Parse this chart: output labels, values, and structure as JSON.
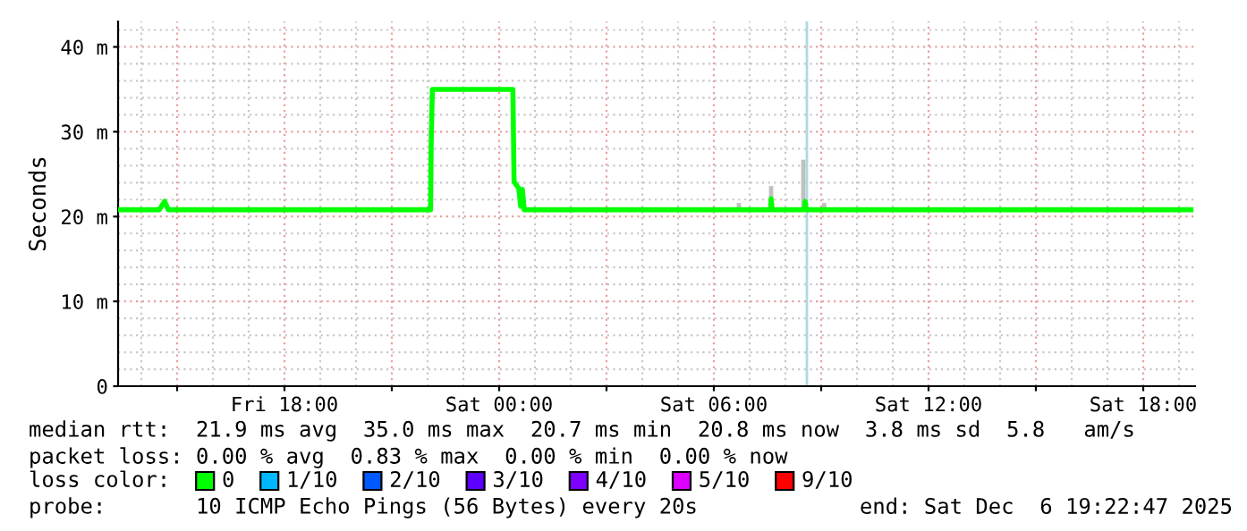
{
  "chart_data": {
    "type": "line",
    "ylabel": "Seconds",
    "xlim": [
      "2025-12-05T13:21",
      "2025-12-06T19:27"
    ],
    "xticks": [
      {
        "value": "2025-12-05T15:00",
        "label": null
      },
      {
        "value": "2025-12-05T18:00",
        "label": "Fri 18:00"
      },
      {
        "value": "2025-12-05T21:00",
        "label": null
      },
      {
        "value": "2025-12-06T00:00",
        "label": "Sat 00:00"
      },
      {
        "value": "2025-12-06T03:00",
        "label": null
      },
      {
        "value": "2025-12-06T06:00",
        "label": "Sat 06:00"
      },
      {
        "value": "2025-12-06T09:00",
        "label": null
      },
      {
        "value": "2025-12-06T12:00",
        "label": "Sat 12:00"
      },
      {
        "value": "2025-12-06T15:00",
        "label": null
      },
      {
        "value": "2025-12-06T18:00",
        "label": "Sat 18:00"
      }
    ],
    "ylim": [
      0,
      43
    ],
    "yticks": [
      0,
      {
        "value": 10,
        "label": "10 m"
      },
      {
        "value": 20,
        "label": "20 m"
      },
      {
        "value": 30,
        "label": "30 m"
      },
      {
        "value": 40,
        "label": "40 m"
      }
    ],
    "grid": true,
    "series": [
      {
        "name": "0",
        "color": "#00ff00",
        "x": [
          "2025-12-05T13:21",
          "2025-12-05T14:30",
          "2025-12-05T14:39",
          "2025-12-05T14:45",
          "2025-12-05T22:05",
          "2025-12-05T22:06",
          "2025-12-05T22:08",
          "2025-12-06T00:23",
          "2025-12-06T00:25",
          "2025-12-06T00:33",
          "2025-12-06T00:36",
          "2025-12-06T00:39",
          "2025-12-06T00:42",
          "2025-12-06T07:35",
          "2025-12-06T07:36",
          "2025-12-06T07:38",
          "2025-12-06T08:32",
          "2025-12-06T08:33",
          "2025-12-06T08:35",
          "2025-12-06T19:20"
        ],
        "values": [
          20.8,
          20.8,
          21.8,
          20.8,
          20.8,
          28.6,
          35.0,
          35.0,
          24.1,
          23.3,
          21.2,
          23.2,
          20.8,
          20.8,
          22.1,
          20.8,
          20.8,
          21.8,
          20.8,
          20.8
        ]
      },
      {
        "type": "bar",
        "color": "#c0c0c0",
        "x": [
          "2025-12-06T06:42",
          "2025-12-06T07:36",
          "2025-12-06T08:30",
          "2025-12-06T09:05"
        ],
        "base": [
          20.8,
          20.8,
          20.8,
          20.8
        ],
        "values": [
          0.8,
          2.8,
          5.9,
          0.8
        ]
      },
      {
        "name": "1/10",
        "color": "#00b8ff"
      },
      {
        "name": "2/10",
        "color": "#0059ff"
      },
      {
        "name": "3/10",
        "color": "#5e00ff"
      },
      {
        "name": "4/10",
        "color": "#7e00ff"
      },
      {
        "name": "5/10",
        "color": "#dd00ff"
      },
      {
        "name": "9/10",
        "color": "#ff0000"
      }
    ],
    "ref_lines": [
      {
        "axis": "x",
        "value": "2025-12-06T08:36",
        "label": null,
        "color": "#add8e6"
      }
    ],
    "legend": "bottom",
    "annotations": [
      "median rtt:  21.9 ms avg  35.0 ms max  20.7 ms min  20.8 ms now  3.8 ms sd  5.8   am/s",
      "packet loss: 0.00 % avg  0.83 % max  0.00 % min  0.00 % now",
      "loss color:",
      "probe:       10 ICMP Echo Pings (56 Bytes) every 20s",
      "end: Sat Dec  6 19:22:47 2025"
    ]
  }
}
